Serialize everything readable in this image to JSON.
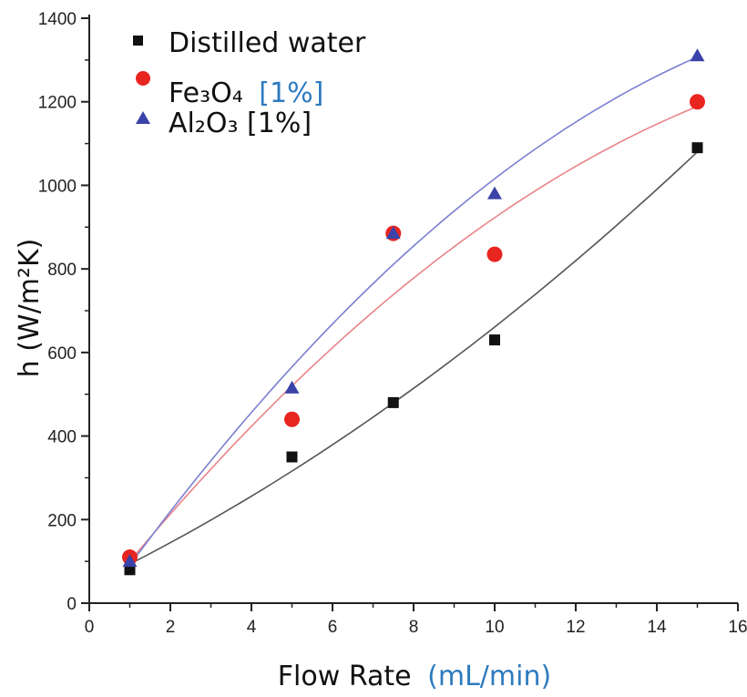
{
  "chart_data": {
    "type": "scatter",
    "xlabel": "Flow Rate",
    "xlabel_unit": "(mL/min)",
    "ylabel": "h (W/m²K)",
    "xlim": [
      0,
      16
    ],
    "ylim": [
      0,
      1400
    ],
    "x_ticks": [
      "0",
      "2",
      "4",
      "6",
      "8",
      "10",
      "12",
      "14",
      "16"
    ],
    "y_ticks": [
      "0",
      "200",
      "400",
      "600",
      "800",
      "1000",
      "1200",
      "1400"
    ],
    "grid": false,
    "legend_position": "top-left",
    "series": [
      {
        "name": "Distilled water",
        "marker": "square",
        "color": "#111111",
        "fit_color": "#555555",
        "x": [
          1,
          5,
          7.5,
          10,
          15
        ],
        "y": [
          80,
          350,
          480,
          630,
          1090
        ]
      },
      {
        "name": "Fe₃O₄ [1%]",
        "name_main": "Fe₃O₄",
        "name_suffix": "[1%]",
        "marker": "circle",
        "color": "#e8251f",
        "fit_color": "#e8848a",
        "x": [
          1,
          5,
          7.5,
          10,
          15
        ],
        "y": [
          110,
          440,
          885,
          835,
          1200
        ]
      },
      {
        "name": "Al₂O₃ [1%]",
        "marker": "triangle",
        "color": "#3a43a8",
        "fit_color": "#7a7fd0",
        "x": [
          1,
          5,
          7.5,
          10,
          15
        ],
        "y": [
          100,
          515,
          885,
          980,
          1310
        ]
      }
    ]
  },
  "colors": {
    "unit_accent": "#2e7bbf"
  }
}
